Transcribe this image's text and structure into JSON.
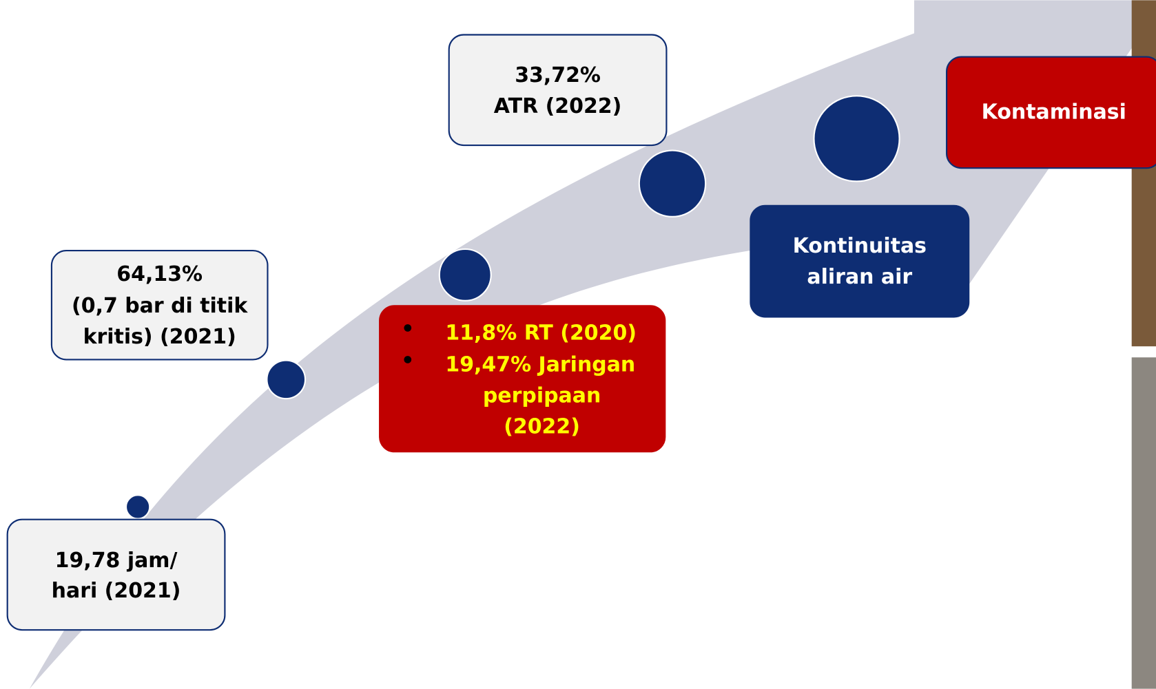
{
  "boxes": [
    {
      "lines": [
        "19,78 jam/",
        "hari (2021)"
      ]
    },
    {
      "lines": [
        "64,13%",
        "(0,7 bar di titik",
        "kritis) (2021)"
      ]
    },
    {
      "lines": [
        "33,72%",
        "ATR (2022)"
      ]
    },
    {
      "bullets": [
        "11,8% RT (2020)",
        "19,47% Jaringan"
      ],
      "continuation": [
        "perpipaan",
        "(2022)"
      ]
    },
    {
      "lines": [
        "Kontinuitas",
        "aliran air"
      ]
    },
    {
      "lines": [
        "Kontaminasi"
      ]
    }
  ]
}
